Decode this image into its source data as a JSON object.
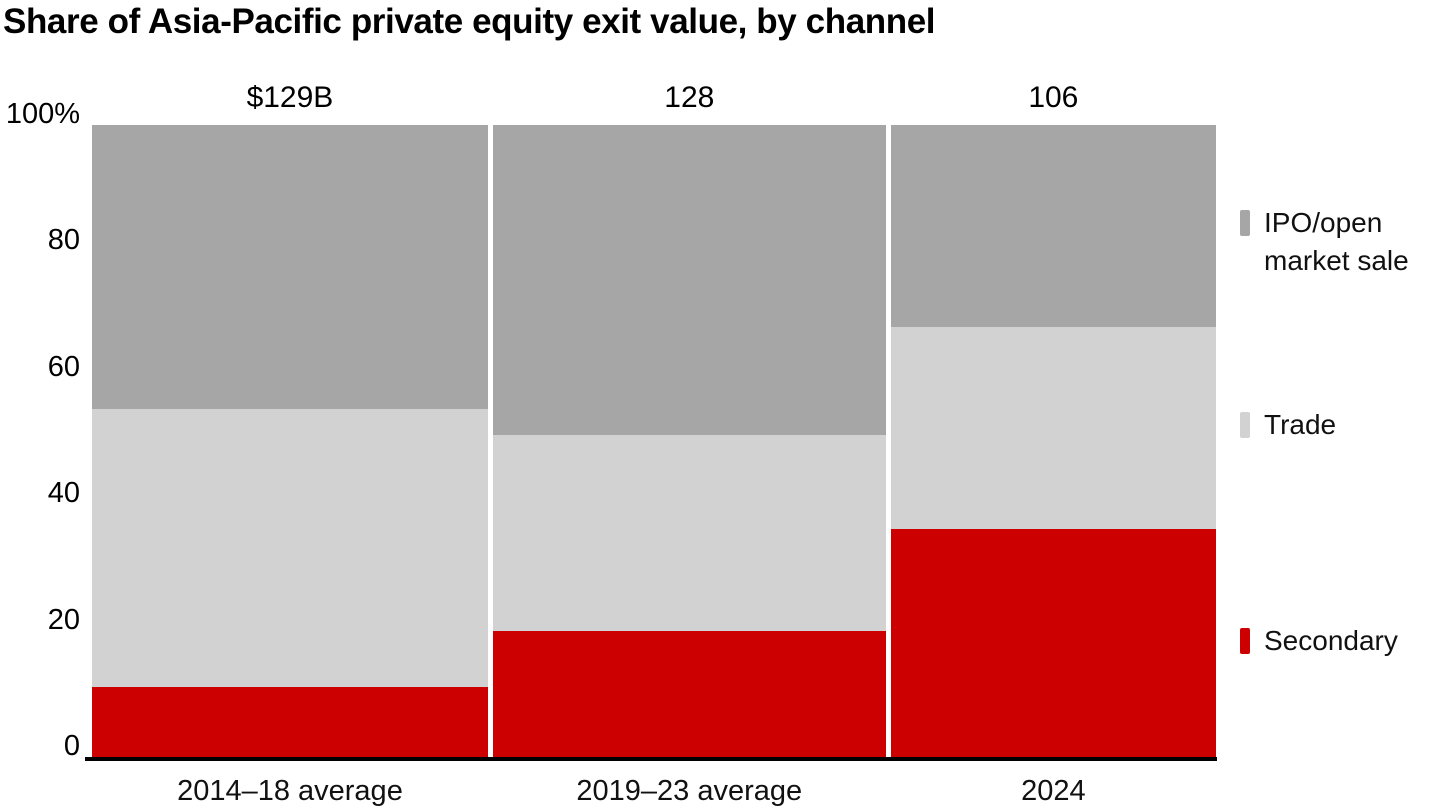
{
  "chart": {
    "title": "Share of Asia-Pacific private equity exit value, by channel"
  },
  "chart_data": {
    "type": "bar",
    "variant": "stacked-100pct-variable-width",
    "title": "Share of Asia-Pacific private equity exit value, by channel",
    "categories": [
      "2014–18 average",
      "2019–23 average",
      "2024"
    ],
    "bar_total_labels": [
      "$129B",
      "128",
      "106"
    ],
    "bar_totals_usd_billions": [
      129,
      128,
      106
    ],
    "series": [
      {
        "name": "IPO/open market sale",
        "color": "#a6a6a6",
        "values": [
          45,
          49,
          32
        ]
      },
      {
        "name": "Trade",
        "color": "#d2d2d2",
        "values": [
          44,
          31,
          32
        ]
      },
      {
        "name": "Secondary",
        "color": "#cc0000",
        "values": [
          11,
          20,
          36
        ]
      }
    ],
    "stack_order_top_to_bottom": [
      "IPO/open market sale",
      "Trade",
      "Secondary"
    ],
    "xlabel": "",
    "ylabel": "",
    "y_axis": {
      "tick_labels": [
        "100%",
        "80",
        "60",
        "40",
        "20",
        "0"
      ],
      "tick_values": [
        100,
        80,
        60,
        40,
        20,
        0
      ],
      "ylim": [
        0,
        100
      ],
      "grid": false
    },
    "legend": {
      "position": "right",
      "items": [
        {
          "label": "IPO/open market sale",
          "color": "#a6a6a6"
        },
        {
          "label": "Trade",
          "color": "#d2d2d2"
        },
        {
          "label": "Secondary",
          "color": "#cc0000"
        }
      ]
    },
    "axis_line_color": "#000000",
    "background_color": "#ffffff"
  }
}
